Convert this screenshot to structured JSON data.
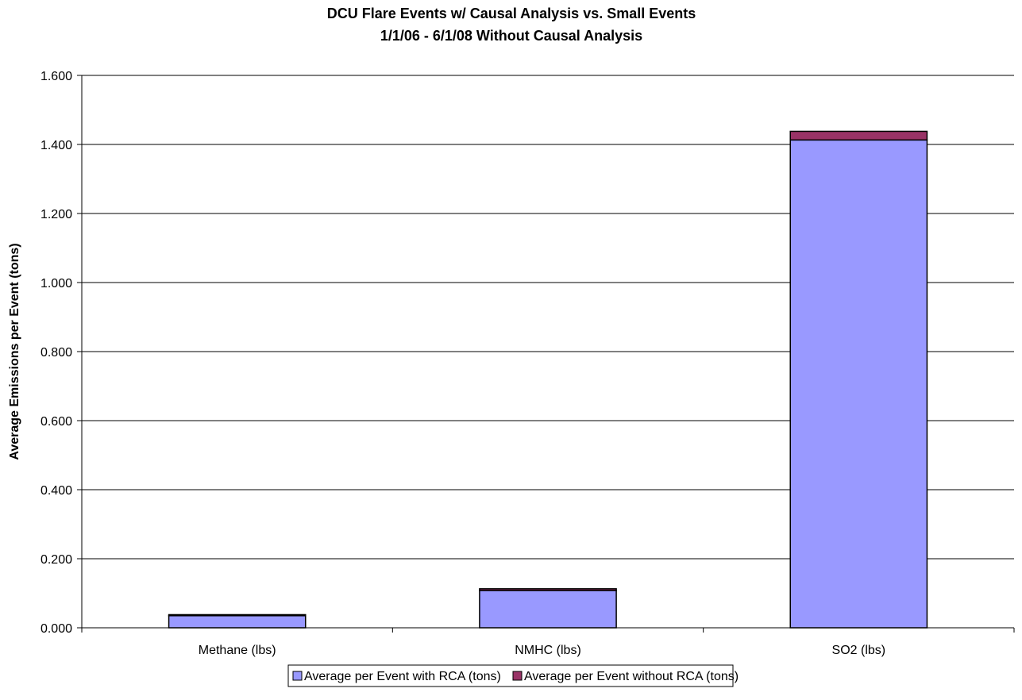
{
  "chart_data": {
    "type": "bar",
    "stacked": true,
    "title": "DCU Flare Events w/ Causal Analysis vs. Small Events",
    "subtitle": "1/1/06 - 6/1/08 Without Causal Analysis",
    "xlabel": "",
    "ylabel": "Average Emissions per Event (tons)",
    "categories": [
      "Methane (lbs)",
      "NMHC (lbs)",
      "SO2 (lbs)"
    ],
    "ylim": [
      0,
      1.6
    ],
    "yticks": [
      "0.000",
      "0.200",
      "0.400",
      "0.600",
      "0.800",
      "1.000",
      "1.200",
      "1.400",
      "1.600"
    ],
    "ytick_values": [
      0,
      0.2,
      0.4,
      0.6,
      0.8,
      1.0,
      1.2,
      1.4,
      1.6
    ],
    "grid": true,
    "legend_position": "bottom",
    "series": [
      {
        "name": "Average per Event with RCA (tons)",
        "color": "#9999ff",
        "values": [
          0.035,
          0.108,
          1.413
        ]
      },
      {
        "name": "Average per Event without RCA (tons)",
        "color": "#993366",
        "values": [
          0.003,
          0.005,
          0.025
        ]
      }
    ]
  }
}
